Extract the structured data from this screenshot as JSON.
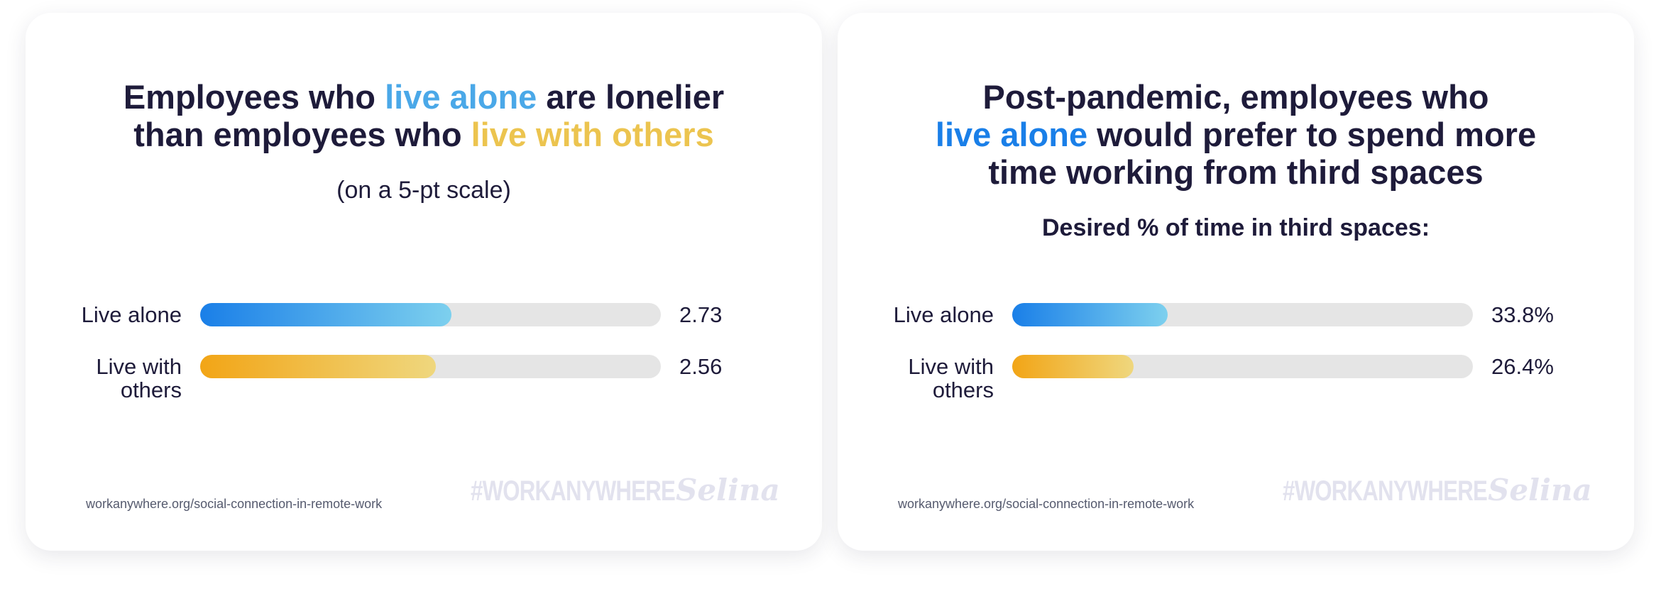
{
  "chart_data": [
    {
      "type": "bar",
      "orientation": "horizontal",
      "title_lines": [
        [
          {
            "text": "Employees who ",
            "color": "#1e1b3a"
          },
          {
            "text": "live alone",
            "color": "#4aa8e8"
          },
          {
            "text": " are lonelier",
            "color": "#1e1b3a"
          }
        ],
        [
          {
            "text": "than employees who ",
            "color": "#1e1b3a"
          },
          {
            "text": "live with others",
            "color": "#ecc44f"
          }
        ]
      ],
      "subtitle": "(on a 5-pt scale)",
      "categories": [
        "Live alone",
        "Live with others"
      ],
      "values": [
        2.73,
        2.56
      ],
      "xlim": [
        0,
        5
      ],
      "colors": [
        [
          "#1a7fe8",
          "#7dd0ee"
        ],
        [
          "#f2a516",
          "#efd77e"
        ]
      ],
      "track_color": "#e5e5e5",
      "source": "workanywhere.org/social-connection-in-remote-work",
      "hashtag": "#WORKANYWHERE",
      "brand": "Selina"
    },
    {
      "type": "bar",
      "orientation": "horizontal",
      "title_lines": [
        [
          {
            "text": "Post-pandemic, employees who",
            "color": "#1e1b3a"
          }
        ],
        [
          {
            "text": "live alone",
            "color": "#1a7fe8"
          },
          {
            "text": " would prefer to spend more",
            "color": "#1e1b3a"
          }
        ],
        [
          {
            "text": "time working from third spaces",
            "color": "#1e1b3a"
          }
        ]
      ],
      "subtitle": "Desired % of time in third spaces:",
      "categories": [
        "Live alone",
        "Live with others"
      ],
      "values": [
        33.8,
        26.4
      ],
      "value_labels": [
        "33.8%",
        "26.4%"
      ],
      "xlim": [
        0,
        100
      ],
      "colors": [
        [
          "#1a7fe8",
          "#7dd0ee"
        ],
        [
          "#f2a516",
          "#efd77e"
        ]
      ],
      "track_color": "#e5e5e5",
      "source": "workanywhere.org/social-connection-in-remote-work",
      "hashtag": "#WORKANYWHERE",
      "brand": "Selina"
    }
  ]
}
